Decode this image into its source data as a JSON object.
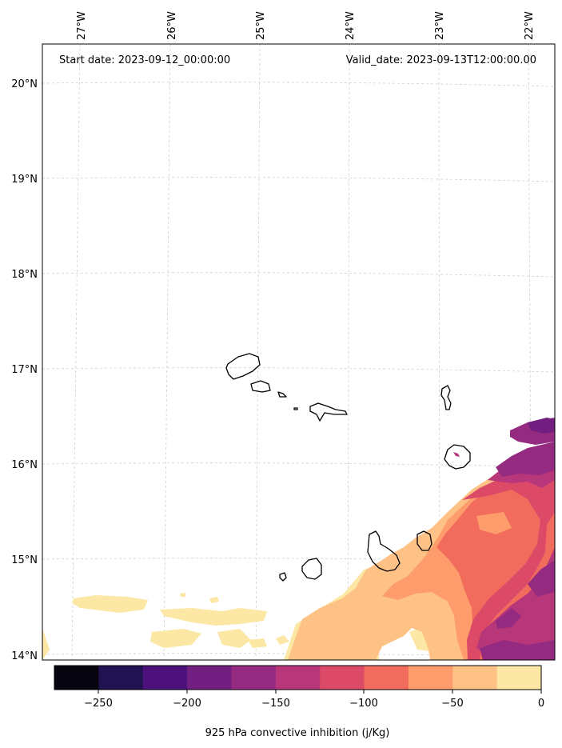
{
  "header": {
    "start_date": "Start date: 2023-09-12_00:00:00",
    "valid_date": "Valid_date: 2023-09-13T12:00:00.00"
  },
  "longitude_labels": [
    "27°W",
    "26°W",
    "25°W",
    "24°W",
    "23°W",
    "22°W"
  ],
  "latitude_labels": [
    "20°N",
    "19°N",
    "18°N",
    "17°N",
    "16°N",
    "15°N",
    "14°N"
  ],
  "colorbar": {
    "label": "925 hPa convective inhibition (j/Kg)",
    "tick_labels": [
      "−250",
      "−200",
      "−150",
      "−100",
      "−50",
      "0"
    ],
    "levels": [
      -275,
      -250,
      -225,
      -200,
      -175,
      -150,
      -125,
      -100,
      -75,
      -50,
      -25,
      0
    ],
    "colors": [
      "#05040f",
      "#211251",
      "#4d117b",
      "#721f81",
      "#952b80",
      "#b8367a",
      "#dd4a68",
      "#f16c5c",
      "#fe9c6b",
      "#fec287",
      "#fce7a5"
    ]
  },
  "map_colors": {
    "land_outline": "#000000",
    "grid": "#cccccc"
  }
}
